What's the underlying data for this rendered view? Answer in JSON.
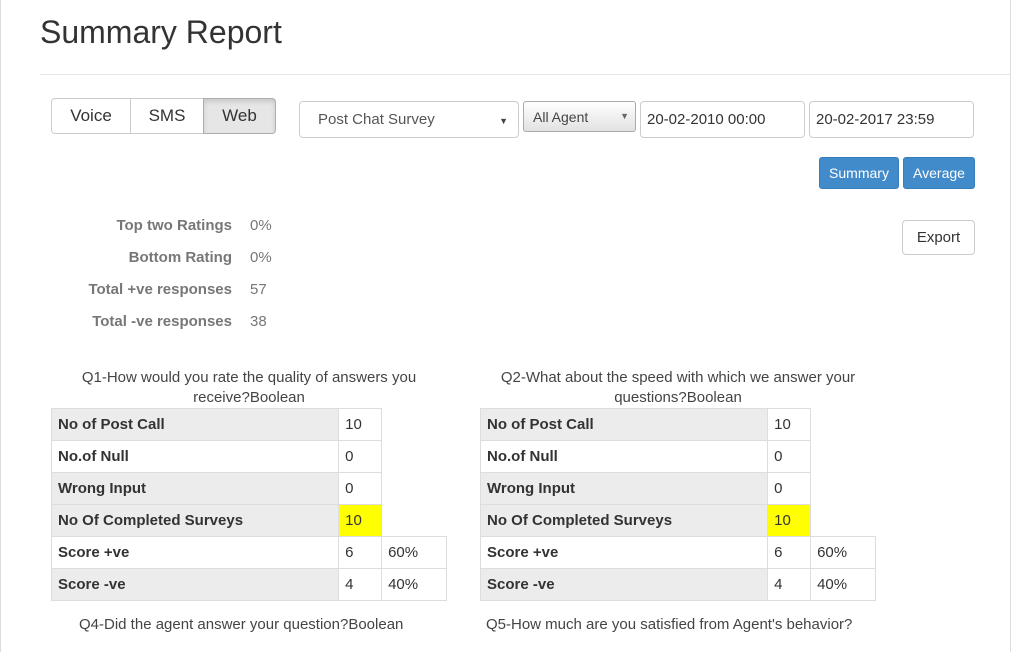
{
  "page": {
    "title": "Summary Report"
  },
  "channels": {
    "voice": "Voice",
    "sms": "SMS",
    "web": "Web",
    "selected": "Web"
  },
  "filters": {
    "survey": "Post Chat Survey",
    "agent": "All Agent",
    "date_from": "20-02-2010 00:00",
    "date_to": "20-02-2017 23:59"
  },
  "actions": {
    "summary": "Summary",
    "average": "Average",
    "export": "Export"
  },
  "stats": [
    {
      "label": "Top two Ratings",
      "value": "0%"
    },
    {
      "label": "Bottom Rating",
      "value": "0%"
    },
    {
      "label": "Total +ve responses",
      "value": "57"
    },
    {
      "label": "Total -ve responses",
      "value": "38"
    }
  ],
  "questions": [
    {
      "title_line1": "Q1-How would you rate the quality of answers you",
      "title_line2": "receive?Boolean",
      "rows": [
        {
          "label": "No of Post Call",
          "value": "10"
        },
        {
          "label": "No.of Null",
          "value": "0"
        },
        {
          "label": "Wrong Input",
          "value": "0"
        },
        {
          "label": "No Of Completed Surveys",
          "value": "10"
        },
        {
          "label": "Score +ve",
          "value": "6",
          "pct": "60%"
        },
        {
          "label": "Score -ve",
          "value": "4",
          "pct": "40%"
        }
      ]
    },
    {
      "title_line1": "Q2-What about the speed with which we answer your",
      "title_line2": "questions?Boolean",
      "rows": [
        {
          "label": "No of Post Call",
          "value": "10"
        },
        {
          "label": "No.of Null",
          "value": "0"
        },
        {
          "label": "Wrong Input",
          "value": "0"
        },
        {
          "label": "No Of Completed Surveys",
          "value": "10"
        },
        {
          "label": "Score +ve",
          "value": "6",
          "pct": "60%"
        },
        {
          "label": "Score -ve",
          "value": "4",
          "pct": "40%"
        }
      ]
    }
  ],
  "next_questions": {
    "q4": "Q4-Did the agent answer your question?Boolean",
    "q5": "Q5-How much are you satisfied from Agent's behavior?"
  },
  "colors": {
    "primary": "#428bca",
    "highlight": "#ffff00"
  }
}
